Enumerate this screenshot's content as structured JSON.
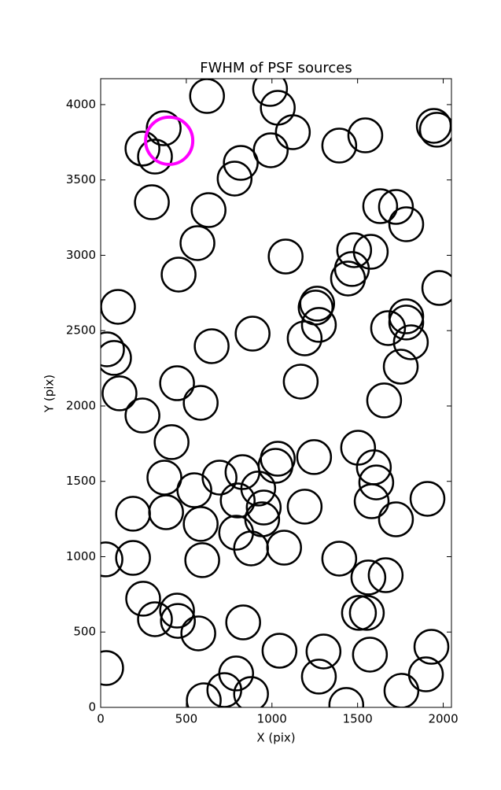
{
  "chart_data": {
    "type": "scatter",
    "title": "FWHM of PSF sources",
    "x_label": "X (pix)",
    "y_label": "Y (pix)",
    "xlim": [
      0,
      2048
    ],
    "ylim": [
      0,
      4172
    ],
    "xticks": [
      0,
      500,
      1000,
      1500,
      2000
    ],
    "yticks": [
      0,
      500,
      1000,
      1500,
      2000,
      2500,
      3000,
      3500,
      4000
    ],
    "series": [
      {
        "color": "#000000",
        "x": [
          621,
          989,
          1034,
          1122,
          993,
          1393,
          1545,
          1945,
          1963,
          368,
          244,
          317,
          818,
          782,
          299,
          630,
          565,
          455,
          1080,
          1480,
          1577,
          1467,
          1444,
          1632,
          1724,
          1784,
          1977,
          101,
          1264,
          1255,
          1274,
          1191,
          887,
          648,
          1678,
          1784,
          1784,
          1811,
          1752,
          37,
          78,
          110,
          244,
          446,
          584,
          1168,
          1655,
          414,
          1503,
          1595,
          1609,
          1582,
          1246,
          1034,
          1021,
          372,
          547,
          694,
          828,
          920,
          800,
          952,
          943,
          1191,
          382,
          189,
          584,
          791,
          878,
          1071,
          1724,
          1908,
          28,
          189,
          593,
          1393,
          1563,
          1664,
          248,
          446,
          317,
          451,
          570,
          832,
          1508,
          1554,
          1044,
          1301,
          1572,
          1931,
          1899,
          1756,
          1274,
          791,
          722,
          878,
          602,
          1434,
          32
        ],
        "y": [
          4057,
          4104,
          3979,
          3817,
          3697,
          3728,
          3796,
          3859,
          3833,
          3843,
          3708,
          3655,
          3613,
          3509,
          3352,
          3300,
          3081,
          2872,
          2992,
          3034,
          3023,
          2909,
          2846,
          3326,
          3321,
          3206,
          2783,
          2658,
          2679,
          2653,
          2538,
          2449,
          2480,
          2397,
          2517,
          2595,
          2554,
          2423,
          2261,
          2376,
          2319,
          2084,
          1937,
          2151,
          2021,
          2162,
          2037,
          1760,
          1723,
          1593,
          1493,
          1368,
          1661,
          1650,
          1603,
          1525,
          1441,
          1525,
          1561,
          1452,
          1373,
          1326,
          1248,
          1332,
          1295,
          1285,
          1217,
          1159,
          1055,
          1060,
          1248,
          1384,
          982,
          992,
          977,
          987,
          862,
          877,
          721,
          642,
          585,
          574,
          491,
          564,
          627,
          627,
          376,
          371,
          350,
          402,
          219,
          110,
          204,
          225,
          115,
          89,
          47,
          16,
          261
        ]
      },
      {
        "color": "#ff00ff",
        "x": [
          400
        ],
        "y": [
          3760
        ]
      }
    ]
  }
}
